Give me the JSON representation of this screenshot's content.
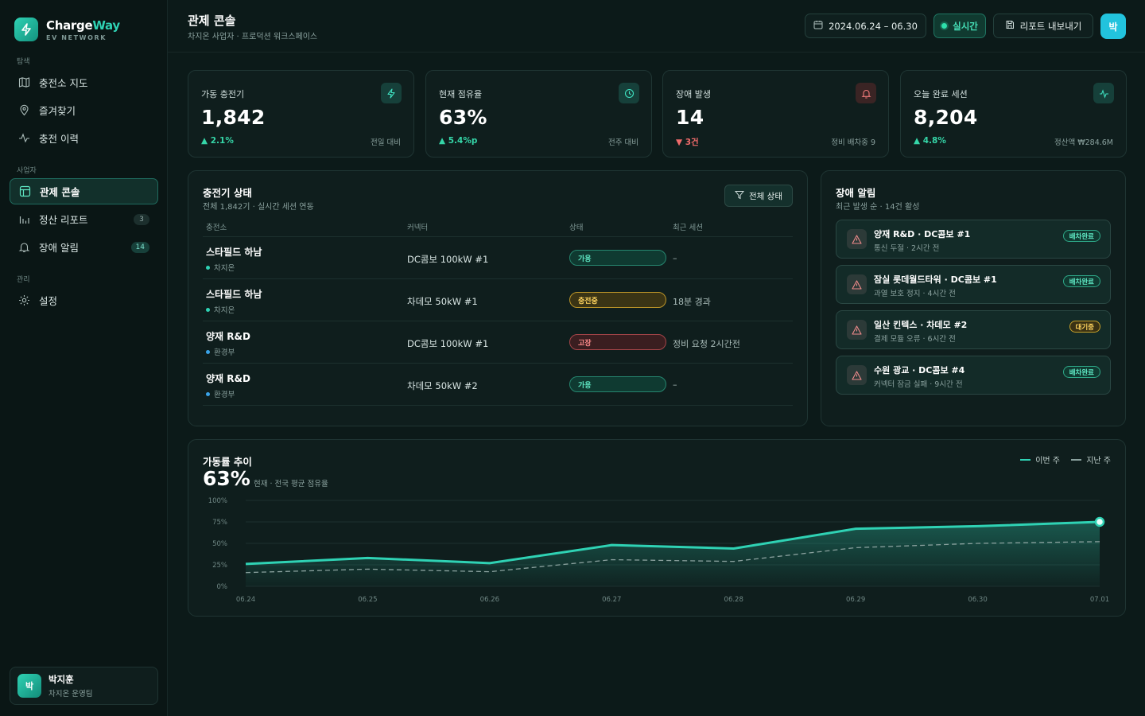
{
  "brand": {
    "name_main": "Charge",
    "name_accent": "Way",
    "sub": "EV NETWORK"
  },
  "sidebar": {
    "section_explore": "탐색",
    "section_business": "사업자",
    "section_admin": "관리",
    "items": [
      {
        "label": "충전소 지도",
        "icon": "map-icon"
      },
      {
        "label": "즐겨찾기",
        "icon": "pin-icon"
      },
      {
        "label": "충전 이력",
        "icon": "activity-icon"
      },
      {
        "label": "관제 콘솔",
        "icon": "dashboard-icon",
        "active": true
      },
      {
        "label": "정산 리포트",
        "icon": "bar-chart-icon",
        "badge": "3"
      },
      {
        "label": "장애 알림",
        "icon": "bell-icon",
        "badge": "14"
      },
      {
        "label": "설정",
        "icon": "gear-icon"
      }
    ],
    "user": {
      "initial": "박",
      "name": "박지훈",
      "role": "차지온 운영팀"
    }
  },
  "header": {
    "title": "관제 콘솔",
    "subtitle": "차지온 사업자 · 프로덕션 워크스페이스",
    "date_range": "2024.06.24 – 06.30",
    "live_label": "실시간",
    "export_label": "리포트 내보내기",
    "avatar_initial": "박"
  },
  "kpis": [
    {
      "label": "가동 충전기",
      "value": "1,842",
      "delta": "2.1%",
      "delta_dir": "up",
      "note": "전일 대비",
      "icon": "bolt-icon"
    },
    {
      "label": "현재 점유율",
      "value": "63%",
      "delta": "5.4%p",
      "delta_dir": "up",
      "note": "전주 대비",
      "icon": "clock-icon"
    },
    {
      "label": "장애 발생",
      "value": "14",
      "delta": "3건",
      "delta_dir": "down",
      "note": "정비 배차중 9",
      "icon": "bell-icon"
    },
    {
      "label": "오늘 완료 세션",
      "value": "8,204",
      "delta": "4.8%",
      "delta_dir": "up",
      "note": "정산액 ₩284.6M",
      "icon": "pulse-icon"
    }
  ],
  "charger_status": {
    "title": "충전기 상태",
    "subtitle": "전체 1,842기 · 실시간 세션 연동",
    "filter_label": "전체 상태",
    "columns": [
      "충전소",
      "커넥터",
      "상태",
      "최근 세션"
    ],
    "rows": [
      {
        "site": "스타필드 하남",
        "org": "차지온",
        "org_color": "#2fd2b4",
        "connector": "DC콤보 100kW #1",
        "status": "가용",
        "status_type": "ok",
        "recent": "–"
      },
      {
        "site": "스타필드 하남",
        "org": "차지온",
        "org_color": "#2fd2b4",
        "connector": "차데모 50kW #1",
        "status": "충전중",
        "status_type": "charge",
        "recent": "18분 경과"
      },
      {
        "site": "양재 R&D",
        "org": "환경부",
        "org_color": "#3aa3e8",
        "connector": "DC콤보 100kW #1",
        "status": "고장",
        "status_type": "fault",
        "recent": "정비 요청 2시간전"
      },
      {
        "site": "양재 R&D",
        "org": "환경부",
        "org_color": "#3aa3e8",
        "connector": "차데모 50kW #2",
        "status": "가용",
        "status_type": "ok",
        "recent": "–"
      }
    ]
  },
  "alerts": {
    "title": "장애 알림",
    "subtitle": "최근 발생 순 · 14건 활성",
    "items": [
      {
        "title": "양재 R&D · DC콤보 #1",
        "desc": "통신 두절 · 2시간 전",
        "badge": "배차완료",
        "badge_type": "done"
      },
      {
        "title": "잠실 롯데월드타워 · DC콤보 #1",
        "desc": "과열 보호 정지 · 4시간 전",
        "badge": "배차완료",
        "badge_type": "done"
      },
      {
        "title": "일산 킨텍스 · 차데모 #2",
        "desc": "결제 모듈 오류 · 6시간 전",
        "badge": "대기중",
        "badge_type": "wait"
      },
      {
        "title": "수원 광교 · DC콤보 #4",
        "desc": "커넥터 잠금 실패 · 9시간 전",
        "badge": "배차완료",
        "badge_type": "done"
      }
    ]
  },
  "trend": {
    "title": "가동률 추이",
    "value": "63%",
    "value_sub": "현재 · 전국 평균 점유율",
    "legend_this": "이번 주",
    "legend_last": "지난 주",
    "colors": {
      "this_week": "#2fd2b4",
      "last_week": "#8aa19e"
    }
  },
  "chart_data": {
    "type": "area",
    "x": [
      "06.24",
      "06.25",
      "06.26",
      "06.27",
      "06.28",
      "06.29",
      "06.30",
      "07.01"
    ],
    "y_ticks": [
      "100%",
      "75%",
      "50%",
      "25%",
      "0%"
    ],
    "ylim": [
      0,
      100
    ],
    "series": [
      {
        "name": "이번 주",
        "values": [
          26,
          33,
          27,
          48,
          44,
          67,
          70,
          75
        ]
      },
      {
        "name": "지난 주",
        "values": [
          16,
          20,
          17,
          31,
          29,
          45,
          50,
          52
        ]
      }
    ]
  }
}
